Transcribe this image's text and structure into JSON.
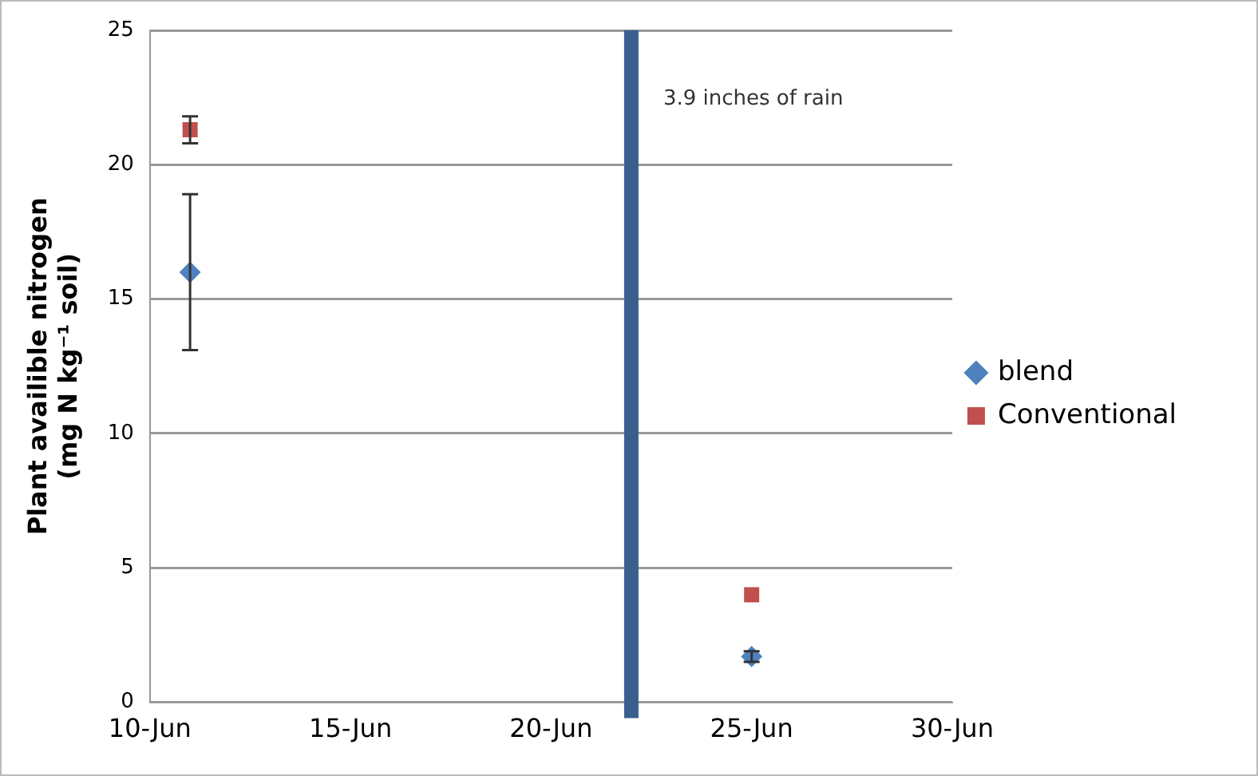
{
  "chart_data": {
    "type": "scatter",
    "ylabel": "Plant availible nitrogen\n(mg N kg⁻¹ soil)",
    "x": [
      "--06-11",
      "--06-25"
    ],
    "series": [
      {
        "name": "blend",
        "color": "#4f81bd",
        "marker": "diamond",
        "values": [
          16.0,
          1.7
        ],
        "errors": [
          2.9,
          0.2
        ]
      },
      {
        "name": "Conventional",
        "color": "#c0504d",
        "marker": "square",
        "values": [
          21.3,
          4.0
        ],
        "errors": [
          0.5,
          null
        ]
      }
    ],
    "xlim": [
      "--06-10",
      "--06-30"
    ],
    "xticks": [
      {
        "value": "--06-10",
        "label": "10-Jun"
      },
      {
        "value": "--06-15",
        "label": "15-Jun"
      },
      {
        "value": "--06-20",
        "label": "20-Jun"
      },
      {
        "value": "--06-25",
        "label": "25-Jun"
      },
      {
        "value": "--06-30",
        "label": "30-Jun"
      }
    ],
    "ylim": [
      0,
      25
    ],
    "yticks": [
      0,
      5,
      10,
      15,
      20,
      25
    ],
    "ref_lines": [
      {
        "axis": "x",
        "value": "--06-22",
        "label": "3.9 inches of rain",
        "color": "#3a5f8f"
      }
    ],
    "grid": "y",
    "legend": "right"
  }
}
